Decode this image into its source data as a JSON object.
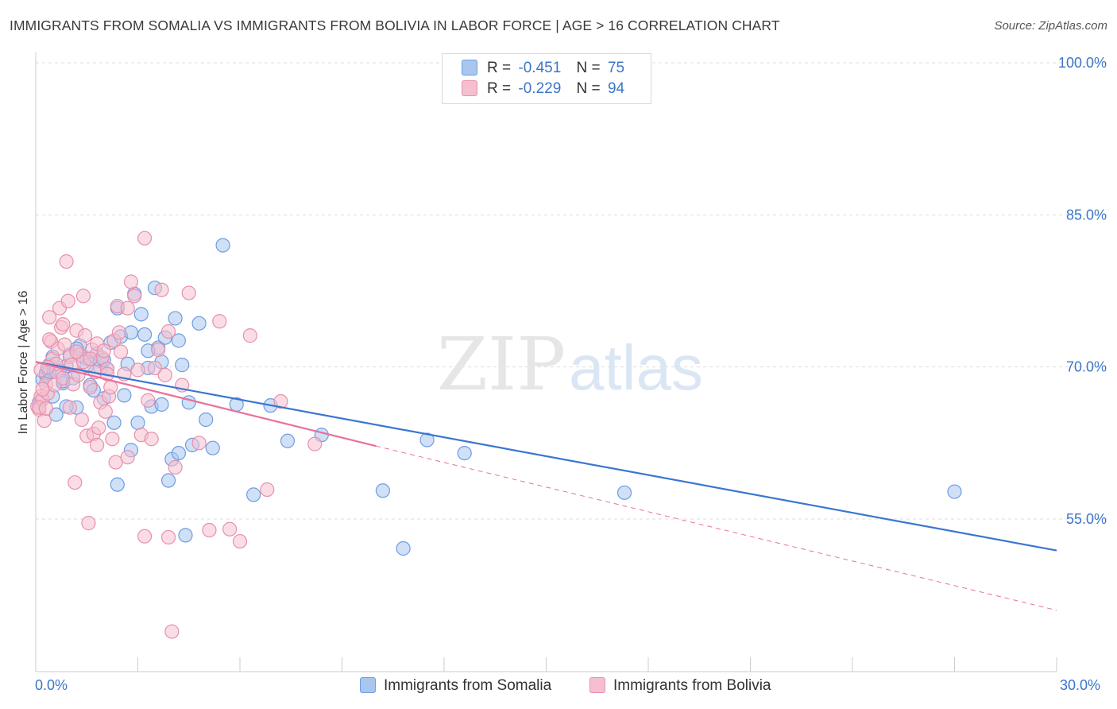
{
  "header": {
    "title": "IMMIGRANTS FROM SOMALIA VS IMMIGRANTS FROM BOLIVIA IN LABOR FORCE | AGE > 16 CORRELATION CHART",
    "source": "Source: ZipAtlas.com"
  },
  "watermark": {
    "zip": "ZIP",
    "atlas": "atlas"
  },
  "legend_top": {
    "rows": [
      {
        "r_label": "R =",
        "r_value": "-0.451",
        "n_label": "N =",
        "n_value": "75"
      },
      {
        "r_label": "R =",
        "r_value": "-0.229",
        "n_label": "N =",
        "n_value": "94"
      }
    ]
  },
  "chart_data": {
    "type": "scatter",
    "title": "IMMIGRANTS FROM SOMALIA VS IMMIGRANTS FROM BOLIVIA IN LABOR FORCE | AGE > 16 CORRELATION CHART",
    "xlabel": "",
    "ylabel": "In Labor Force | Age > 16",
    "xlim": [
      0,
      30
    ],
    "ylim": [
      40,
      102
    ],
    "x_tick_labels": [
      "0.0%",
      "30.0%"
    ],
    "y_ticks": [
      55,
      70,
      85,
      100
    ],
    "y_tick_labels": [
      "55.0%",
      "70.0%",
      "85.0%",
      "100.0%"
    ],
    "grid": true,
    "legend_position": "bottom-center",
    "series": [
      {
        "name": "Immigrants from Somalia",
        "color": "#6d9de0",
        "fill": "#a9c6ee",
        "R": -0.451,
        "N": 75,
        "trend": {
          "x0": 0,
          "y0": 70.5,
          "x1": 30,
          "y1": 51.9,
          "dashed_to": 30
        },
        "x": [
          0.1,
          0.2,
          0.3,
          0.4,
          0.5,
          0.6,
          0.7,
          0.8,
          0.9,
          1.0,
          1.1,
          1.2,
          1.3,
          1.4,
          1.5,
          1.6,
          1.7,
          1.8,
          1.9,
          2.0,
          2.1,
          2.2,
          2.3,
          2.4,
          2.5,
          2.6,
          2.7,
          2.8,
          2.9,
          3.0,
          3.1,
          3.2,
          3.3,
          3.4,
          3.5,
          3.6,
          3.7,
          3.8,
          3.9,
          4.0,
          4.1,
          4.2,
          4.3,
          4.4,
          4.5,
          4.6,
          4.8,
          5.0,
          5.2,
          5.5,
          5.9,
          6.4,
          6.9,
          7.4,
          8.4,
          10.2,
          10.8,
          11.5,
          12.6,
          17.3,
          27.0,
          0.3,
          0.5,
          0.8,
          1.2,
          1.5,
          1.9,
          2.4,
          2.8,
          3.3,
          3.7,
          4.2,
          0.4,
          0.9,
          2.0
        ],
        "y": [
          66.5,
          68.8,
          69.4,
          70.2,
          67.1,
          65.3,
          69.6,
          68.4,
          70.1,
          71.2,
          68.9,
          66.0,
          72.1,
          71.0,
          70.8,
          68.2,
          67.7,
          71.3,
          70.6,
          66.9,
          69.8,
          72.4,
          64.5,
          75.8,
          73.0,
          67.2,
          70.3,
          61.8,
          77.2,
          64.5,
          75.2,
          73.2,
          69.9,
          66.1,
          77.8,
          71.9,
          70.5,
          72.9,
          58.8,
          60.9,
          74.8,
          72.6,
          70.2,
          53.4,
          66.5,
          62.3,
          74.3,
          64.8,
          62.0,
          82.0,
          66.3,
          57.4,
          66.2,
          62.7,
          63.3,
          57.8,
          52.1,
          62.8,
          61.5,
          57.6,
          57.7,
          69.2,
          71.0,
          68.6,
          71.8,
          70.1,
          69.9,
          58.4,
          73.4,
          71.6,
          66.3,
          61.5,
          69.5,
          66.1,
          70.7
        ]
      },
      {
        "name": "Immigrants from Bolivia",
        "color": "#e890ac",
        "fill": "#f5bfd0",
        "R": -0.229,
        "N": 94,
        "trend": {
          "x0": 0,
          "y0": 70.5,
          "x1": 10.0,
          "y1": 62.2,
          "dashed_to": 30,
          "y_dashed_end": 46.0
        },
        "x": [
          0.05,
          0.1,
          0.15,
          0.2,
          0.25,
          0.3,
          0.35,
          0.4,
          0.45,
          0.5,
          0.55,
          0.6,
          0.65,
          0.7,
          0.75,
          0.8,
          0.85,
          0.9,
          0.95,
          1.0,
          1.05,
          1.1,
          1.15,
          1.2,
          1.25,
          1.3,
          1.35,
          1.4,
          1.45,
          1.5,
          1.55,
          1.6,
          1.65,
          1.7,
          1.75,
          1.8,
          1.85,
          1.9,
          1.95,
          2.0,
          2.05,
          2.1,
          2.15,
          2.2,
          2.25,
          2.3,
          2.35,
          2.4,
          2.45,
          2.5,
          2.6,
          2.7,
          2.8,
          2.9,
          3.0,
          3.1,
          3.2,
          3.3,
          3.4,
          3.5,
          3.6,
          3.7,
          3.8,
          3.9,
          4.0,
          4.1,
          4.3,
          4.5,
          4.8,
          5.1,
          5.4,
          5.7,
          6.0,
          6.3,
          6.8,
          7.2,
          8.2,
          0.1,
          0.2,
          0.3,
          0.4,
          0.6,
          0.8,
          1.0,
          1.2,
          1.4,
          1.6,
          1.8,
          2.1,
          2.7,
          3.2,
          3.9,
          0.15,
          0.35
        ],
        "y": [
          66.1,
          65.8,
          67.1,
          66.8,
          64.7,
          68.3,
          67.4,
          74.9,
          72.5,
          70.8,
          68.2,
          69.5,
          71.8,
          75.8,
          73.9,
          68.9,
          72.2,
          80.4,
          76.5,
          71.0,
          70.2,
          68.3,
          58.6,
          73.6,
          69.2,
          71.2,
          64.8,
          70.5,
          73.1,
          63.2,
          54.6,
          68.0,
          71.7,
          63.4,
          69.5,
          72.3,
          64.0,
          66.5,
          70.9,
          71.6,
          65.6,
          69.8,
          67.1,
          68.0,
          62.9,
          72.6,
          60.6,
          76.0,
          73.4,
          71.5,
          69.3,
          61.1,
          78.4,
          77.0,
          69.7,
          63.3,
          82.7,
          66.7,
          62.9,
          69.9,
          71.7,
          77.6,
          69.2,
          73.5,
          43.9,
          60.1,
          68.2,
          77.3,
          62.5,
          53.9,
          74.5,
          54.0,
          52.8,
          73.1,
          57.9,
          66.6,
          62.4,
          66.0,
          67.8,
          65.9,
          72.7,
          70.3,
          74.2,
          66.0,
          71.5,
          77.0,
          70.8,
          62.3,
          69.3,
          75.8,
          53.3,
          53.2,
          69.7,
          70.0
        ]
      }
    ]
  },
  "legend_bottom": {
    "items": [
      {
        "label": "Immigrants from Somalia"
      },
      {
        "label": "Immigrants from Bolivia"
      }
    ]
  },
  "x_axis": {
    "min_label": "0.0%",
    "max_label": "30.0%"
  },
  "colors": {
    "blue_line": "#3b76d0",
    "pink_line": "#e8719a",
    "tick_text": "#3b76c8",
    "grid": "#dddddd"
  }
}
